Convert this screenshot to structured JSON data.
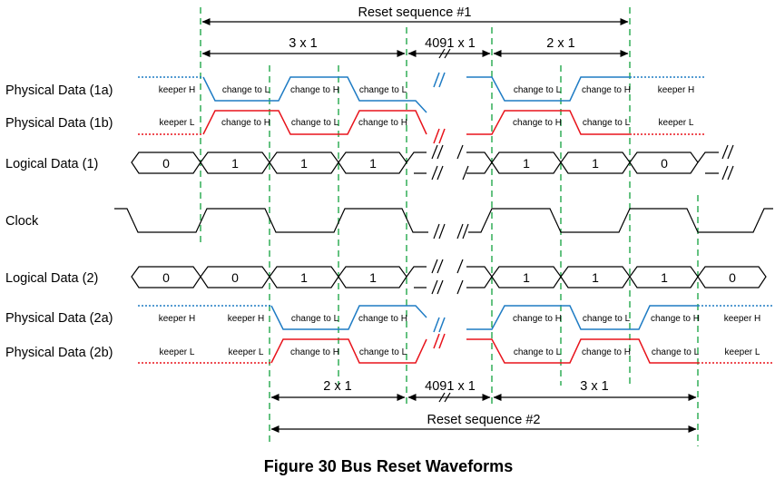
{
  "caption": "Figure 30 Bus Reset Waveforms",
  "top": {
    "reset_seq": "Reset sequence #1",
    "seg_a": "3 x 1",
    "seg_b": "4091 x 1",
    "seg_c": "2 x 1"
  },
  "bottom": {
    "reset_seq": "Reset sequence #2",
    "seg_a": "2 x 1",
    "seg_b": "4091 x 1",
    "seg_c": "3 x 1"
  },
  "rows": {
    "phys_1a": "Physical Data (1a)",
    "phys_1b": "Physical Data (1b)",
    "logic_1": "Logical Data (1)",
    "clock": "Clock",
    "logic_2": "Logical Data (2)",
    "phys_2a": "Physical Data (2a)",
    "phys_2b": "Physical Data (2b)"
  },
  "states": {
    "r1a": [
      "keeper H",
      "change to L",
      "change to H",
      "change to L",
      "change to L",
      "change to H",
      "keeper H"
    ],
    "r1b": [
      "keeper L",
      "change to H",
      "change to L",
      "change to H",
      "change to H",
      "change to L",
      "keeper L"
    ],
    "r2a": [
      "keeper H",
      "keeper H",
      "change to L",
      "change to H",
      "change to H",
      "change to L",
      "change to H",
      "keeper H"
    ],
    "r2b": [
      "keeper L",
      "keeper L",
      "change to H",
      "change to L",
      "change to L",
      "change to H",
      "change to L",
      "keeper L"
    ]
  },
  "bits": {
    "logic_1": [
      "0",
      "1",
      "1",
      "1",
      "1",
      "1",
      "0"
    ],
    "logic_2": [
      "0",
      "0",
      "1",
      "1",
      "1",
      "1",
      "1",
      "0"
    ]
  },
  "colors": {
    "data_a": "#1f7cc4",
    "data_b": "#e8141c",
    "guides": "#23a84b"
  }
}
